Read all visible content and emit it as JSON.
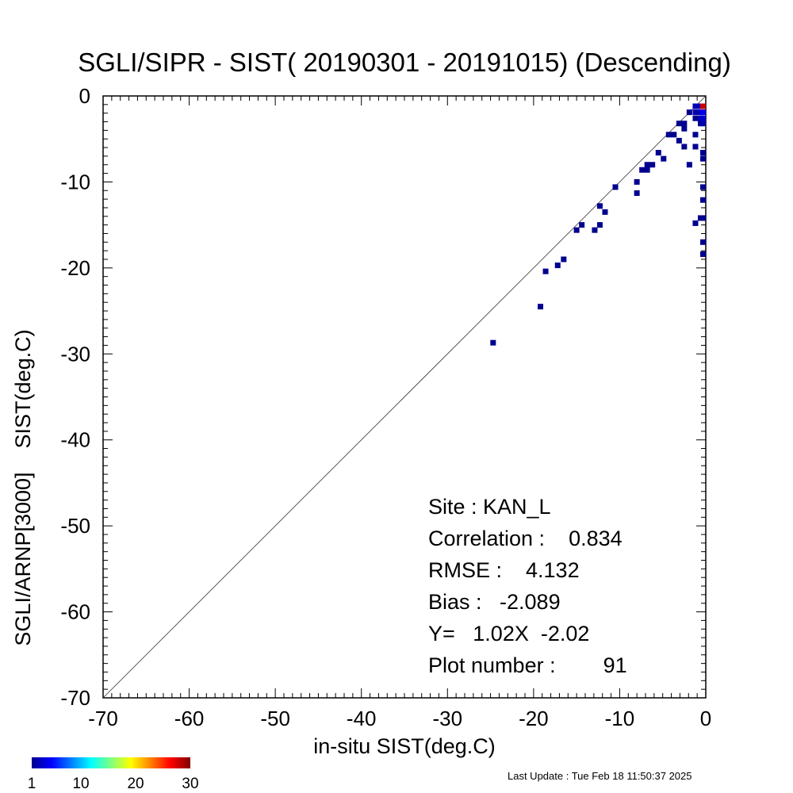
{
  "chart_data": {
    "type": "scatter",
    "title": "SGLI/SIPR - SIST( 20190301 - 20191015) (Descending)",
    "xlabel": "in-situ SIST(deg.C)",
    "ylabel": "SGLI/ARNP[3000]    SIST(deg.C)",
    "xlim": [
      -70,
      0
    ],
    "ylim": [
      -70,
      0
    ],
    "xticks": [
      "-70",
      "-60",
      "-50",
      "-40",
      "-30",
      "-20",
      "-10",
      "0"
    ],
    "yticks": [
      "-70",
      "-60",
      "-50",
      "-40",
      "-30",
      "-20",
      "-10",
      "0"
    ],
    "one_to_one_line": true,
    "grid": false,
    "stats": {
      "site": "Site : KAN_L",
      "correlation": "Correlation :    0.834",
      "rmse": "RMSE :    4.132",
      "bias": "Bias :   -2.089",
      "fit": "Y=   1.02X  -2.02",
      "plot_number": "Plot number :        91"
    },
    "colorbar": {
      "labels": [
        "1",
        "10",
        "20",
        "30"
      ],
      "range": [
        1,
        30
      ],
      "colormap": "jet"
    },
    "points": [
      {
        "x": -24.7,
        "y": -28.7,
        "c": 1
      },
      {
        "x": -19.2,
        "y": -24.5,
        "c": 1
      },
      {
        "x": -18.6,
        "y": -20.4,
        "c": 1
      },
      {
        "x": -17.2,
        "y": -19.7,
        "c": 1
      },
      {
        "x": -16.5,
        "y": -19.0,
        "c": 1
      },
      {
        "x": -15.0,
        "y": -15.6,
        "c": 1
      },
      {
        "x": -14.4,
        "y": -15.0,
        "c": 1
      },
      {
        "x": -12.9,
        "y": -15.6,
        "c": 1
      },
      {
        "x": -12.3,
        "y": -15.0,
        "c": 1
      },
      {
        "x": -12.3,
        "y": -12.8,
        "c": 1
      },
      {
        "x": -11.7,
        "y": -13.5,
        "c": 1
      },
      {
        "x": -10.5,
        "y": -10.6,
        "c": 1
      },
      {
        "x": -8.0,
        "y": -10.0,
        "c": 1
      },
      {
        "x": -8.0,
        "y": -11.3,
        "c": 1
      },
      {
        "x": -7.4,
        "y": -8.6,
        "c": 1
      },
      {
        "x": -6.8,
        "y": -8.6,
        "c": 1
      },
      {
        "x": -6.8,
        "y": -8.0,
        "c": 1
      },
      {
        "x": -6.2,
        "y": -8.0,
        "c": 1
      },
      {
        "x": -5.5,
        "y": -6.6,
        "c": 1
      },
      {
        "x": -4.9,
        "y": -7.3,
        "c": 1
      },
      {
        "x": -4.3,
        "y": -4.5,
        "c": 1
      },
      {
        "x": -3.7,
        "y": -4.5,
        "c": 1
      },
      {
        "x": -3.1,
        "y": -3.2,
        "c": 1
      },
      {
        "x": -3.1,
        "y": -5.2,
        "c": 1
      },
      {
        "x": -2.5,
        "y": -3.2,
        "c": 1
      },
      {
        "x": -2.5,
        "y": -3.8,
        "c": 1
      },
      {
        "x": -2.5,
        "y": -5.9,
        "c": 1
      },
      {
        "x": -1.9,
        "y": -1.9,
        "c": 1
      },
      {
        "x": -1.9,
        "y": -8.0,
        "c": 1
      },
      {
        "x": -1.2,
        "y": -1.2,
        "c": 2
      },
      {
        "x": -1.2,
        "y": -1.9,
        "c": 2
      },
      {
        "x": -1.2,
        "y": -2.6,
        "c": 1
      },
      {
        "x": -1.2,
        "y": -4.5,
        "c": 1
      },
      {
        "x": -1.2,
        "y": -5.9,
        "c": 1
      },
      {
        "x": -1.2,
        "y": -14.8,
        "c": 1
      },
      {
        "x": -0.6,
        "y": -1.2,
        "c": 3
      },
      {
        "x": -0.6,
        "y": -1.9,
        "c": 2
      },
      {
        "x": -0.6,
        "y": -2.6,
        "c": 2
      },
      {
        "x": -0.6,
        "y": -3.2,
        "c": 1
      },
      {
        "x": -0.6,
        "y": -14.2,
        "c": 1
      },
      {
        "x": 0.0,
        "y": -1.2,
        "c": 28
      },
      {
        "x": 0.0,
        "y": -1.9,
        "c": 4
      },
      {
        "x": 0.0,
        "y": -2.6,
        "c": 3
      },
      {
        "x": 0.0,
        "y": -3.2,
        "c": 2
      },
      {
        "x": 0.0,
        "y": -6.6,
        "c": 1
      },
      {
        "x": 0.0,
        "y": -7.3,
        "c": 1
      },
      {
        "x": 0.0,
        "y": -10.6,
        "c": 1
      },
      {
        "x": 0.0,
        "y": -12.1,
        "c": 1
      },
      {
        "x": 0.0,
        "y": -14.2,
        "c": 1
      },
      {
        "x": 0.0,
        "y": -17.0,
        "c": 1
      },
      {
        "x": 0.0,
        "y": -18.4,
        "c": 1
      }
    ]
  },
  "footer": {
    "last_update": "Last Update : Tue Feb 18 11:50:37 2025"
  }
}
